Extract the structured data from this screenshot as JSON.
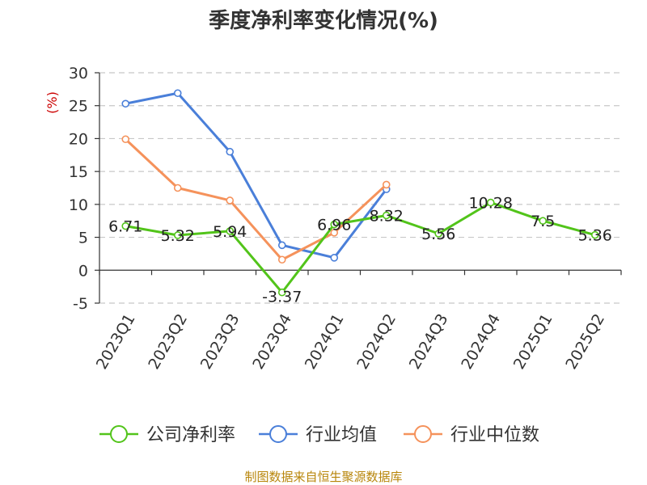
{
  "chart_data": {
    "type": "line",
    "title": "季度净利率变化情况(%)",
    "ylabel": "(%)",
    "ylim": [
      -5,
      30
    ],
    "yticks": [
      30,
      25,
      20,
      15,
      10,
      5,
      0,
      -5
    ],
    "grid": true,
    "legend_position": "bottom",
    "categories": [
      "2023Q1",
      "2023Q2",
      "2023Q3",
      "2023Q4",
      "2024Q1",
      "2024Q2",
      "2024Q3",
      "2024Q4",
      "2025Q1",
      "2025Q2"
    ],
    "series": [
      {
        "name": "公司净利率",
        "color": "#52c41a",
        "values": [
          6.71,
          5.32,
          5.94,
          -3.37,
          6.96,
          8.32,
          5.56,
          10.28,
          7.5,
          5.36
        ],
        "labels": [
          "6.71",
          "5.32",
          "5.94",
          "-3.37",
          "6.96",
          "8.32",
          "5.56",
          "10.28",
          "7.5",
          "5.36"
        ]
      },
      {
        "name": "行业均值",
        "color": "#4a7fd9",
        "values": [
          25.3,
          26.9,
          18.0,
          3.8,
          1.9,
          12.3,
          null,
          null,
          null,
          null
        ]
      },
      {
        "name": "行业中位数",
        "color": "#f5925b",
        "values": [
          19.9,
          12.5,
          10.6,
          1.6,
          5.7,
          13.0,
          null,
          null,
          null,
          null
        ]
      }
    ]
  },
  "source": "制图数据来自恒生聚源数据库"
}
